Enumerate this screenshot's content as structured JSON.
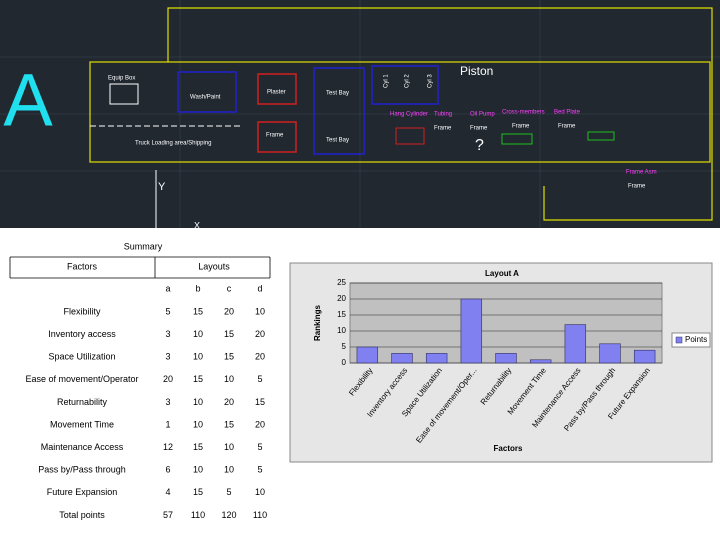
{
  "cad": {
    "big_label": "A",
    "labels": [
      "Equip Box",
      "Wash/Paint",
      "Plaster",
      "Test Bay",
      "Truck Loading area/Shipping",
      "Frame",
      "Test Bay",
      "Cyl 1",
      "Cyl 2",
      "Cyl 3",
      "Piston",
      "Hang Cylinder",
      "Tubing",
      "Oil Pump",
      "Cross-members",
      "Bed Plate",
      "Frame",
      "Frame",
      "Frame",
      "Frame",
      "?",
      "Frame Asm",
      "Frame",
      "Y",
      "X"
    ]
  },
  "table": {
    "caption": "Summary",
    "factors_header": "Factors",
    "layouts_header": "Layouts",
    "columns": [
      "a",
      "b",
      "c",
      "d"
    ],
    "rows": [
      [
        "Flexibility",
        5,
        15,
        20,
        10
      ],
      [
        "Inventory access",
        3,
        10,
        15,
        20
      ],
      [
        "Space Utilization",
        3,
        10,
        15,
        20
      ],
      [
        "Ease of movement/Operator",
        20,
        15,
        10,
        5
      ],
      [
        "Returnability",
        3,
        10,
        20,
        15
      ],
      [
        "Movement Time",
        1,
        10,
        15,
        20
      ],
      [
        "Maintenance Access",
        12,
        15,
        10,
        5
      ],
      [
        "Pass by/Pass through",
        6,
        10,
        10,
        5
      ],
      [
        "Future Expansion",
        4,
        15,
        5,
        10
      ],
      [
        "Total points",
        57,
        110,
        120,
        110
      ]
    ]
  },
  "chart_data": {
    "type": "bar",
    "title": "Layout A",
    "x_label": "Factors",
    "y_label": "Rankings",
    "categories": [
      "Flexibility",
      "Inventory access",
      "Space Utilization",
      "Ease of movement/Oper...",
      "Returnability",
      "Movement Time",
      "Maintenance Access",
      "Pass by/Pass through",
      "Future Expansion"
    ],
    "series": [
      {
        "name": "Points",
        "color": "#8080f0",
        "values": [
          5,
          3,
          3,
          20,
          3,
          1,
          12,
          6,
          4
        ]
      }
    ],
    "ylim": [
      0,
      25
    ],
    "yticks": [
      0,
      5,
      10,
      15,
      20,
      25
    ],
    "grid": true,
    "legend": "right"
  }
}
